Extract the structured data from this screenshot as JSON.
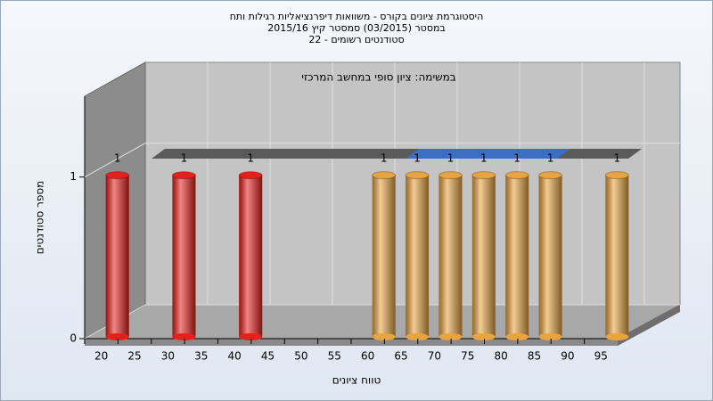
{
  "chart_data": {
    "type": "bar",
    "title": [
      "היסטוגרמת ציונים בקורס - משוואות דיפרנציאליות רגילות ותח",
      "במסטר  (03/2015)  סמסטר קיץ  2015/16",
      "סטודנטים רשומים - 22"
    ],
    "annotation": "במשימה: ציון סופי במחשב המרכזי",
    "x_label": "טווח ציונים",
    "y_label": "מספר סטודנטים",
    "categories": [
      "20",
      "25",
      "30",
      "35",
      "40",
      "45",
      "50",
      "55",
      "60",
      "65",
      "70",
      "75",
      "80",
      "85",
      "90",
      "95"
    ],
    "values": [
      1,
      0,
      1,
      0,
      1,
      0,
      0,
      0,
      1,
      1,
      1,
      1,
      1,
      1,
      0,
      1
    ],
    "colors": [
      "#e8201c",
      "#e8201c",
      "#e8201c",
      "#e8201c",
      "#e8201c",
      "#e8201c",
      "#e8201c",
      "#e8201c",
      "#e8a440",
      "#e8a440",
      "#e8a440",
      "#e8a440",
      "#e8a440",
      "#e8a440",
      "#e8a440",
      "#e8a440"
    ],
    "ylim": [
      0,
      1.5
    ],
    "yticks": [
      0,
      1
    ],
    "grid": true
  }
}
